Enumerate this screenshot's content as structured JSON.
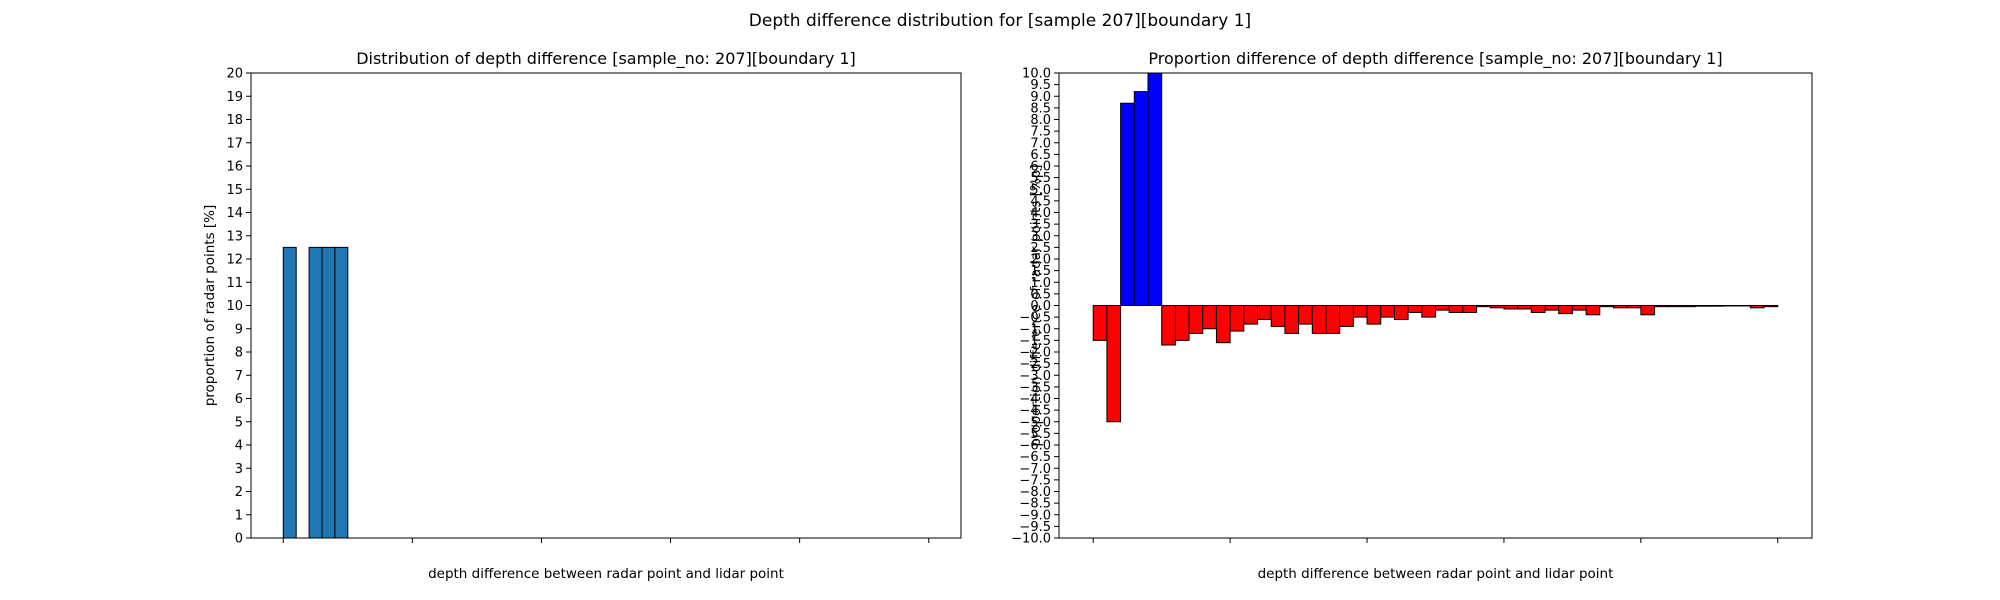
{
  "figure": {
    "suptitle": "Depth difference distribution for [sample 207][boundary 1]"
  },
  "chart_data": [
    {
      "type": "bar",
      "title": "Distribution of depth difference [sample_no: 207][boundary 1]",
      "xlabel": "depth difference between radar point and lidar point",
      "ylabel": "proportion of radar points [%]",
      "xlim": [
        -5,
        105
      ],
      "ylim": [
        0,
        20
      ],
      "xticks": [
        0,
        20,
        40,
        60,
        80,
        100
      ],
      "yticks": [
        0,
        1,
        2,
        3,
        4,
        5,
        6,
        7,
        8,
        9,
        10,
        11,
        12,
        13,
        14,
        15,
        16,
        17,
        18,
        19,
        20
      ],
      "bar_width": 2,
      "colors": {
        "bar": "#1f77b4",
        "edge": "#000000"
      },
      "x": [
        1,
        5,
        7,
        9
      ],
      "values": [
        12.5,
        12.5,
        12.5,
        12.5
      ]
    },
    {
      "type": "bar",
      "title": "Proportion difference of depth difference [sample_no: 207][boundary 1]",
      "xlabel": "depth difference between radar point and lidar point",
      "ylabel": "proportion difference of radar points [%p]",
      "xlim": [
        -5,
        105
      ],
      "ylim": [
        -10,
        10
      ],
      "xticks": [
        0,
        20,
        40,
        60,
        80,
        100
      ],
      "yticks": [
        10.0,
        9.5,
        9.0,
        8.5,
        8.0,
        7.5,
        7.0,
        6.5,
        6.0,
        5.5,
        5.0,
        4.5,
        4.0,
        3.5,
        3.0,
        2.5,
        2.0,
        1.5,
        1.0,
        0.5,
        0.0,
        -0.5,
        -1.0,
        -1.5,
        -2.0,
        -2.5,
        -3.0,
        -3.5,
        -4.0,
        -4.5,
        -5.0,
        -5.5,
        -6.0,
        -6.5,
        -7.0,
        -7.5,
        -8.0,
        -8.5,
        -9.0,
        -9.5,
        -10.0
      ],
      "bar_width": 2,
      "colors": {
        "positive": "#0000ff",
        "negative": "#ff0000",
        "edge": "#000000"
      },
      "x": [
        1,
        3,
        5,
        7,
        9,
        11,
        13,
        15,
        17,
        19,
        21,
        23,
        25,
        27,
        29,
        31,
        33,
        35,
        37,
        39,
        41,
        43,
        45,
        47,
        49,
        51,
        53,
        55,
        57,
        59,
        61,
        63,
        65,
        67,
        69,
        71,
        73,
        75,
        77,
        79,
        81,
        83,
        85,
        87,
        89,
        91,
        93,
        95,
        97,
        99
      ],
      "values": [
        -1.5,
        -5.0,
        8.7,
        9.2,
        10.0,
        -1.7,
        -1.5,
        -1.2,
        -1.0,
        -1.6,
        -1.1,
        -0.8,
        -0.6,
        -0.9,
        -1.2,
        -0.8,
        -1.2,
        -1.2,
        -0.9,
        -0.5,
        -0.8,
        -0.5,
        -0.6,
        -0.3,
        -0.5,
        -0.2,
        -0.3,
        -0.3,
        -0.05,
        -0.1,
        -0.15,
        -0.15,
        -0.3,
        -0.2,
        -0.35,
        -0.2,
        -0.4,
        -0.05,
        -0.1,
        -0.1,
        -0.4,
        -0.05,
        -0.05,
        -0.05,
        -0.03,
        -0.03,
        -0.02,
        -0.02,
        -0.1,
        -0.05
      ]
    }
  ]
}
